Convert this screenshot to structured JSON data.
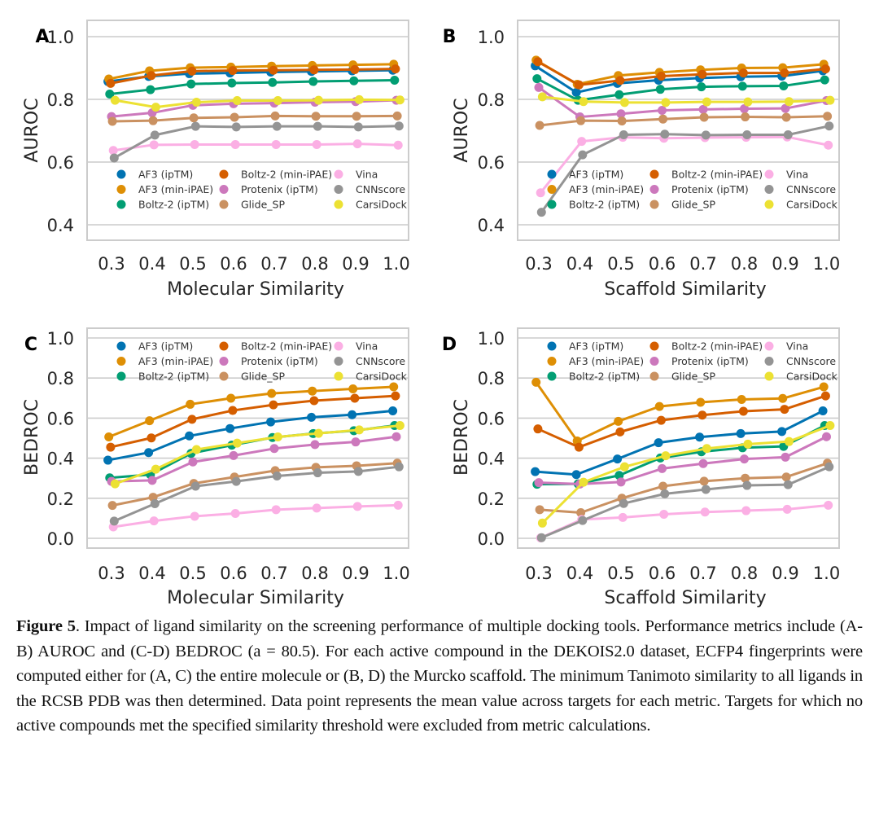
{
  "figure": {
    "label": "Figure 5",
    "caption": ". Impact of ligand similarity on the screening performance of multiple docking tools. Performance metrics include (A-B) AUROC and (C-D) BEDROC (a = 80.5). For each active compound in the DEKOIS2.0 dataset, ECFP4 fingerprints were computed either for (A, C) the entire molecule or (B, D) the Murcko scaffold. The minimum Tanimoto similarity to all ligands in the RCSB PDB was then determined. Data point represents the mean value across targets for each metric. Targets for which no active compounds met the specified similarity threshold were excluded from metric calculations."
  },
  "series_styles": [
    {
      "name": "AF3 (ipTM)",
      "color": "#0173b2"
    },
    {
      "name": "AF3 (min-iPAE)",
      "color": "#de8f05"
    },
    {
      "name": "Boltz-2 (ipTM)",
      "color": "#029e73"
    },
    {
      "name": "Boltz-2 (min-iPAE)",
      "color": "#d55e00"
    },
    {
      "name": "Protenix (ipTM)",
      "color": "#cc78bc"
    },
    {
      "name": "Glide_SP",
      "color": "#ca9161"
    },
    {
      "name": "Vina",
      "color": "#fbafe4"
    },
    {
      "name": "CNNscore",
      "color": "#949494"
    },
    {
      "name": "CarsiDock",
      "color": "#ece133"
    }
  ],
  "chart_data": [
    {
      "panel": "A",
      "type": "line",
      "xlabel": "Molecular Similarity",
      "ylabel": "AUROC",
      "categories": [
        "0.3",
        "0.4",
        "0.5",
        "0.6",
        "0.7",
        "0.8",
        "0.9",
        "1.0"
      ],
      "yticks": [
        "0.4",
        "0.6",
        "0.8",
        "1.0"
      ],
      "ylim": [
        0.33,
        1.05
      ],
      "grid": true,
      "legend_position": "lower-center",
      "series": [
        {
          "name": "AF3 (ipTM)",
          "values": [
            0.857,
            0.873,
            0.882,
            0.884,
            0.887,
            0.889,
            0.891,
            0.893
          ]
        },
        {
          "name": "AF3 (min-iPAE)",
          "values": [
            0.865,
            0.891,
            0.901,
            0.903,
            0.906,
            0.908,
            0.91,
            0.912
          ]
        },
        {
          "name": "Boltz-2 (ipTM)",
          "values": [
            0.817,
            0.831,
            0.849,
            0.852,
            0.854,
            0.857,
            0.859,
            0.861
          ]
        },
        {
          "name": "Boltz-2 (min-iPAE)",
          "values": [
            0.851,
            0.876,
            0.89,
            0.892,
            0.893,
            0.894,
            0.895,
            0.897
          ]
        },
        {
          "name": "Protenix (ipTM)",
          "values": [
            0.745,
            0.757,
            0.781,
            0.786,
            0.788,
            0.791,
            0.793,
            0.797
          ]
        },
        {
          "name": "Glide_SP",
          "values": [
            0.73,
            0.732,
            0.741,
            0.743,
            0.747,
            0.746,
            0.746,
            0.747
          ]
        },
        {
          "name": "Vina",
          "values": [
            0.637,
            0.655,
            0.656,
            0.656,
            0.656,
            0.656,
            0.658,
            0.654
          ]
        },
        {
          "name": "CNNscore",
          "values": [
            0.613,
            0.686,
            0.714,
            0.712,
            0.714,
            0.714,
            0.712,
            0.715
          ]
        },
        {
          "name": "CarsiDock",
          "values": [
            0.797,
            0.775,
            0.791,
            0.796,
            0.796,
            0.797,
            0.799,
            0.798
          ]
        }
      ]
    },
    {
      "panel": "B",
      "type": "line",
      "xlabel": "Scaffold Similarity",
      "ylabel": "AUROC",
      "categories": [
        "0.3",
        "0.4",
        "0.5",
        "0.6",
        "0.7",
        "0.8",
        "0.9",
        "1.0"
      ],
      "yticks": [
        "0.4",
        "0.6",
        "0.8",
        "1.0"
      ],
      "ylim": [
        0.33,
        1.05
      ],
      "grid": true,
      "legend_position": "lower-center",
      "series": [
        {
          "name": "AF3 (ipTM)",
          "values": [
            0.907,
            0.822,
            0.851,
            0.861,
            0.868,
            0.872,
            0.874,
            0.891
          ]
        },
        {
          "name": "AF3 (min-iPAE)",
          "values": [
            0.925,
            0.848,
            0.876,
            0.886,
            0.894,
            0.9,
            0.901,
            0.912
          ]
        },
        {
          "name": "Boltz-2 (ipTM)",
          "values": [
            0.866,
            0.797,
            0.815,
            0.832,
            0.84,
            0.842,
            0.843,
            0.862
          ]
        },
        {
          "name": "Boltz-2 (min-iPAE)",
          "values": [
            0.92,
            0.846,
            0.86,
            0.874,
            0.88,
            0.884,
            0.884,
            0.897
          ]
        },
        {
          "name": "Protenix (ipTM)",
          "values": [
            0.838,
            0.744,
            0.754,
            0.765,
            0.768,
            0.77,
            0.771,
            0.796
          ]
        },
        {
          "name": "Glide_SP",
          "values": [
            0.717,
            0.732,
            0.731,
            0.737,
            0.743,
            0.744,
            0.743,
            0.746
          ]
        },
        {
          "name": "Vina",
          "values": [
            0.502,
            0.666,
            0.679,
            0.676,
            0.678,
            0.679,
            0.68,
            0.654
          ]
        },
        {
          "name": "CNNscore",
          "values": [
            0.44,
            0.623,
            0.687,
            0.689,
            0.686,
            0.687,
            0.687,
            0.715
          ]
        },
        {
          "name": "CarsiDock",
          "values": [
            0.808,
            0.793,
            0.79,
            0.79,
            0.792,
            0.792,
            0.793,
            0.797
          ]
        }
      ]
    },
    {
      "panel": "C",
      "type": "line",
      "xlabel": "Molecular Similarity",
      "ylabel": "BEDROC",
      "categories": [
        "0.3",
        "0.4",
        "0.5",
        "0.6",
        "0.7",
        "0.8",
        "0.9",
        "1.0"
      ],
      "yticks": [
        "0.0",
        "0.2",
        "0.4",
        "0.6",
        "0.8",
        "1.0"
      ],
      "ylim": [
        -0.05,
        1.05
      ],
      "grid": true,
      "legend_position": "top-center",
      "series": [
        {
          "name": "AF3 (ipTM)",
          "values": [
            0.39,
            0.428,
            0.511,
            0.548,
            0.581,
            0.604,
            0.617,
            0.636
          ]
        },
        {
          "name": "AF3 (min-iPAE)",
          "values": [
            0.506,
            0.587,
            0.669,
            0.699,
            0.723,
            0.735,
            0.746,
            0.756
          ]
        },
        {
          "name": "Boltz-2 (ipTM)",
          "values": [
            0.302,
            0.318,
            0.424,
            0.465,
            0.503,
            0.523,
            0.537,
            0.563
          ]
        },
        {
          "name": "Boltz-2 (min-iPAE)",
          "values": [
            0.455,
            0.501,
            0.594,
            0.638,
            0.666,
            0.687,
            0.699,
            0.711
          ]
        },
        {
          "name": "Protenix (ipTM)",
          "values": [
            0.284,
            0.289,
            0.381,
            0.413,
            0.448,
            0.468,
            0.481,
            0.507
          ]
        },
        {
          "name": "Glide_SP",
          "values": [
            0.164,
            0.205,
            0.274,
            0.306,
            0.338,
            0.354,
            0.362,
            0.375
          ]
        },
        {
          "name": "Vina",
          "values": [
            0.057,
            0.087,
            0.11,
            0.124,
            0.143,
            0.151,
            0.159,
            0.165
          ]
        },
        {
          "name": "CNNscore",
          "values": [
            0.086,
            0.173,
            0.26,
            0.284,
            0.311,
            0.327,
            0.334,
            0.357
          ]
        },
        {
          "name": "CarsiDock",
          "values": [
            0.272,
            0.345,
            0.443,
            0.475,
            0.506,
            0.524,
            0.541,
            0.563
          ]
        }
      ]
    },
    {
      "panel": "D",
      "type": "line",
      "xlabel": "Scaffold Similarity",
      "ylabel": "BEDROC",
      "categories": [
        "0.3",
        "0.4",
        "0.5",
        "0.6",
        "0.7",
        "0.8",
        "0.9",
        "1.0"
      ],
      "yticks": [
        "0.0",
        "0.2",
        "0.4",
        "0.6",
        "0.8",
        "1.0"
      ],
      "ylim": [
        -0.05,
        1.05
      ],
      "grid": true,
      "legend_position": "top-center",
      "series": [
        {
          "name": "AF3 (ipTM)",
          "values": [
            0.333,
            0.318,
            0.396,
            0.477,
            0.505,
            0.523,
            0.533,
            0.636
          ]
        },
        {
          "name": "AF3 (min-iPAE)",
          "values": [
            0.779,
            0.486,
            0.584,
            0.658,
            0.679,
            0.693,
            0.698,
            0.756
          ]
        },
        {
          "name": "Boltz-2 (ipTM)",
          "values": [
            0.27,
            0.272,
            0.314,
            0.401,
            0.432,
            0.452,
            0.459,
            0.563
          ]
        },
        {
          "name": "Boltz-2 (min-iPAE)",
          "values": [
            0.546,
            0.455,
            0.531,
            0.589,
            0.615,
            0.634,
            0.644,
            0.711
          ]
        },
        {
          "name": "Protenix (ipTM)",
          "values": [
            0.278,
            0.271,
            0.281,
            0.348,
            0.373,
            0.396,
            0.405,
            0.507
          ]
        },
        {
          "name": "Glide_SP",
          "values": [
            0.143,
            0.128,
            0.2,
            0.26,
            0.285,
            0.3,
            0.306,
            0.375
          ]
        },
        {
          "name": "Vina",
          "values": [
            0.002,
            0.094,
            0.104,
            0.12,
            0.131,
            0.138,
            0.145,
            0.165
          ]
        },
        {
          "name": "CNNscore",
          "values": [
            0.003,
            0.089,
            0.174,
            0.222,
            0.244,
            0.264,
            0.268,
            0.357
          ]
        },
        {
          "name": "CarsiDock",
          "values": [
            0.076,
            0.28,
            0.357,
            0.412,
            0.448,
            0.47,
            0.483,
            0.563
          ]
        }
      ]
    }
  ]
}
